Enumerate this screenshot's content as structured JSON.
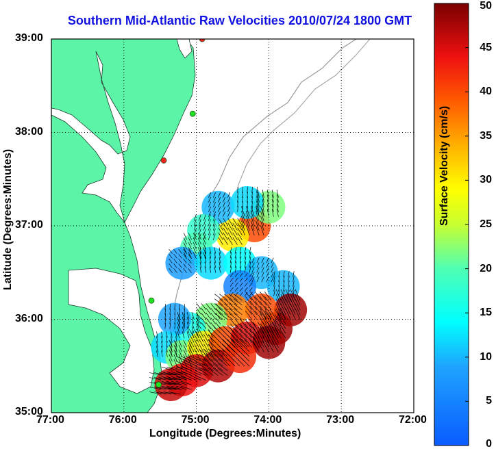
{
  "title": "Southern Mid-Atlantic Raw Velocities 2010/07/24 1800 GMT",
  "x_axis": {
    "label": "Longitude (Degrees:Minutes)",
    "ticks": [
      "77:00",
      "76:00",
      "75:00",
      "74:00",
      "73:00",
      "72:00"
    ]
  },
  "y_axis": {
    "label": "Latitude (Degrees:Minutes)",
    "ticks": [
      "39:00",
      "38:00",
      "37:00",
      "36:00",
      "35:00"
    ]
  },
  "colorbar": {
    "label": "Surface Velocity (cm/s)",
    "ticks": [
      "50",
      "45",
      "40",
      "35",
      "30",
      "25",
      "20",
      "15",
      "10",
      "5",
      "0"
    ],
    "range": [
      0,
      50
    ]
  },
  "map": {
    "lon_range": [
      -77,
      -72
    ],
    "lat_range": [
      35,
      39
    ],
    "grid": true,
    "land_color": "#5cf5a8",
    "water_color": "#ffffff",
    "station_colors": [
      "#ff2020",
      "#20e020"
    ]
  },
  "chart_data": {
    "type": "heatmap",
    "title": "Southern Mid-Atlantic Raw Velocities 2010/07/24 1800 GMT",
    "xlabel": "Longitude (Degrees:Minutes)",
    "ylabel": "Latitude (Degrees:Minutes)",
    "xlim": [
      -77,
      -72
    ],
    "ylim": [
      35,
      39
    ],
    "colorbar_label": "Surface Velocity (cm/s)",
    "colorbar_range": [
      0,
      50
    ],
    "stations": [
      {
        "lon": -74.92,
        "lat": 39.0,
        "color": "#ff2020"
      },
      {
        "lon": -75.05,
        "lat": 38.2,
        "color": "#20e020"
      },
      {
        "lon": -75.45,
        "lat": 37.7,
        "color": "#ff2020"
      },
      {
        "lon": -75.62,
        "lat": 36.2,
        "color": "#20e020"
      },
      {
        "lon": -75.52,
        "lat": 35.3,
        "color": "#20e020"
      }
    ],
    "velocity_field": [
      {
        "lon": -74.2,
        "lat": 37.0,
        "speed": 40,
        "u": -0.3,
        "v": -0.9
      },
      {
        "lon": -74.5,
        "lat": 36.9,
        "speed": 30,
        "u": -0.5,
        "v": -0.8
      },
      {
        "lon": -74.0,
        "lat": 37.2,
        "speed": 22,
        "u": -0.2,
        "v": -1.0
      },
      {
        "lon": -74.7,
        "lat": 37.2,
        "speed": 10,
        "u": 0.4,
        "v": -0.9
      },
      {
        "lon": -74.3,
        "lat": 37.25,
        "speed": 12,
        "u": 0.1,
        "v": -1.0
      },
      {
        "lon": -74.9,
        "lat": 36.95,
        "speed": 18,
        "u": 0.3,
        "v": -0.9
      },
      {
        "lon": -75.0,
        "lat": 36.75,
        "speed": 20,
        "u": -0.4,
        "v": -0.9
      },
      {
        "lon": -75.2,
        "lat": 36.6,
        "speed": 8,
        "u": -0.6,
        "v": -0.8
      },
      {
        "lon": -74.8,
        "lat": 36.6,
        "speed": 12,
        "u": -0.2,
        "v": -1.0
      },
      {
        "lon": -74.4,
        "lat": 36.6,
        "speed": 14,
        "u": 0.2,
        "v": -1.0
      },
      {
        "lon": -74.1,
        "lat": 36.5,
        "speed": 10,
        "u": 0.4,
        "v": -0.9
      },
      {
        "lon": -74.4,
        "lat": 36.35,
        "speed": 5,
        "u": 0.6,
        "v": -0.8
      },
      {
        "lon": -73.8,
        "lat": 36.35,
        "speed": 10,
        "u": 0.2,
        "v": -1.0
      },
      {
        "lon": -73.7,
        "lat": 36.1,
        "speed": 48,
        "u": -0.4,
        "v": -0.9
      },
      {
        "lon": -73.9,
        "lat": 35.9,
        "speed": 48,
        "u": -0.5,
        "v": -0.8
      },
      {
        "lon": -74.1,
        "lat": 36.1,
        "speed": 40,
        "u": -0.6,
        "v": -0.8
      },
      {
        "lon": -74.5,
        "lat": 36.1,
        "speed": 37,
        "u": -0.8,
        "v": -0.6
      },
      {
        "lon": -74.8,
        "lat": 36.0,
        "speed": 22,
        "u": -0.6,
        "v": -0.8
      },
      {
        "lon": -75.1,
        "lat": 35.9,
        "speed": 16,
        "u": -0.3,
        "v": -1.0
      },
      {
        "lon": -75.3,
        "lat": 36.0,
        "speed": 9,
        "u": 0.1,
        "v": -1.0
      },
      {
        "lon": -75.4,
        "lat": 35.7,
        "speed": 12,
        "u": -0.2,
        "v": -1.0
      },
      {
        "lon": -75.2,
        "lat": 35.6,
        "speed": 22,
        "u": -0.4,
        "v": -0.9
      },
      {
        "lon": -74.9,
        "lat": 35.7,
        "speed": 30,
        "u": -0.5,
        "v": -0.9
      },
      {
        "lon": -74.6,
        "lat": 35.75,
        "speed": 40,
        "u": -0.7,
        "v": -0.7
      },
      {
        "lon": -74.3,
        "lat": 35.8,
        "speed": 45,
        "u": -0.6,
        "v": -0.8
      },
      {
        "lon": -74.0,
        "lat": 35.75,
        "speed": 48,
        "u": -0.5,
        "v": -0.9
      },
      {
        "lon": -75.0,
        "lat": 35.45,
        "speed": 45,
        "u": -0.9,
        "v": -0.4
      },
      {
        "lon": -74.7,
        "lat": 35.5,
        "speed": 47,
        "u": -0.8,
        "v": -0.6
      },
      {
        "lon": -74.4,
        "lat": 35.6,
        "speed": 42,
        "u": -0.7,
        "v": -0.7
      },
      {
        "lon": -75.2,
        "lat": 35.35,
        "speed": 44,
        "u": -0.9,
        "v": -0.3
      },
      {
        "lon": -75.35,
        "lat": 35.3,
        "speed": 46,
        "u": -1.0,
        "v": -0.2
      }
    ]
  }
}
